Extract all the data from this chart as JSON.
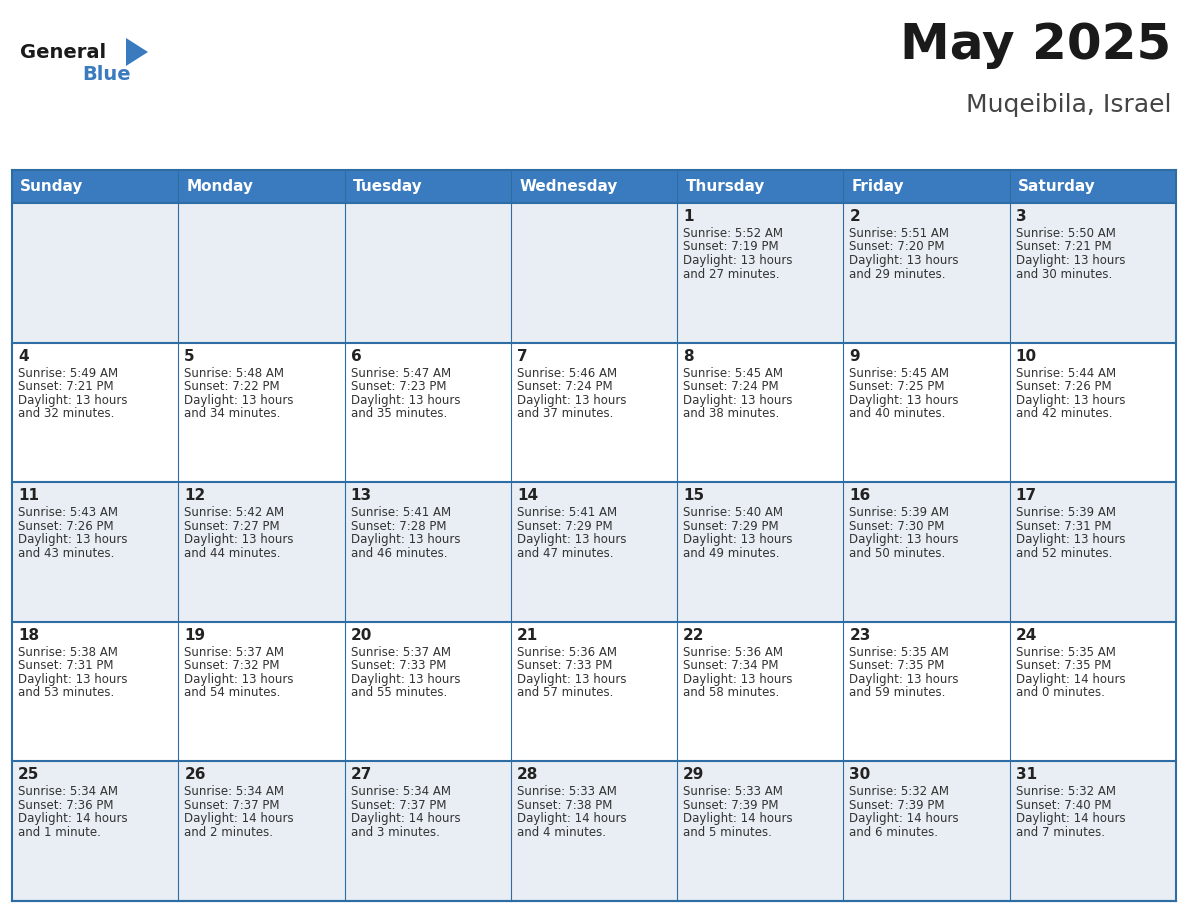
{
  "title": "May 2025",
  "subtitle": "Muqeibila, Israel",
  "header_bg": "#3a7bbf",
  "header_text": "#ffffff",
  "cell_bg_odd": "#e8eef4",
  "cell_bg_even": "#ffffff",
  "border_color": "#2e6da4",
  "text_color": "#333333",
  "day_number_color": "#222222",
  "days_of_week": [
    "Sunday",
    "Monday",
    "Tuesday",
    "Wednesday",
    "Thursday",
    "Friday",
    "Saturday"
  ],
  "weeks": [
    [
      {
        "day": "",
        "sunrise": "",
        "sunset": "",
        "daylight": ""
      },
      {
        "day": "",
        "sunrise": "",
        "sunset": "",
        "daylight": ""
      },
      {
        "day": "",
        "sunrise": "",
        "sunset": "",
        "daylight": ""
      },
      {
        "day": "",
        "sunrise": "",
        "sunset": "",
        "daylight": ""
      },
      {
        "day": "1",
        "sunrise": "5:52 AM",
        "sunset": "7:19 PM",
        "daylight": "13 hours and 27 minutes."
      },
      {
        "day": "2",
        "sunrise": "5:51 AM",
        "sunset": "7:20 PM",
        "daylight": "13 hours and 29 minutes."
      },
      {
        "day": "3",
        "sunrise": "5:50 AM",
        "sunset": "7:21 PM",
        "daylight": "13 hours and 30 minutes."
      }
    ],
    [
      {
        "day": "4",
        "sunrise": "5:49 AM",
        "sunset": "7:21 PM",
        "daylight": "13 hours and 32 minutes."
      },
      {
        "day": "5",
        "sunrise": "5:48 AM",
        "sunset": "7:22 PM",
        "daylight": "13 hours and 34 minutes."
      },
      {
        "day": "6",
        "sunrise": "5:47 AM",
        "sunset": "7:23 PM",
        "daylight": "13 hours and 35 minutes."
      },
      {
        "day": "7",
        "sunrise": "5:46 AM",
        "sunset": "7:24 PM",
        "daylight": "13 hours and 37 minutes."
      },
      {
        "day": "8",
        "sunrise": "5:45 AM",
        "sunset": "7:24 PM",
        "daylight": "13 hours and 38 minutes."
      },
      {
        "day": "9",
        "sunrise": "5:45 AM",
        "sunset": "7:25 PM",
        "daylight": "13 hours and 40 minutes."
      },
      {
        "day": "10",
        "sunrise": "5:44 AM",
        "sunset": "7:26 PM",
        "daylight": "13 hours and 42 minutes."
      }
    ],
    [
      {
        "day": "11",
        "sunrise": "5:43 AM",
        "sunset": "7:26 PM",
        "daylight": "13 hours and 43 minutes."
      },
      {
        "day": "12",
        "sunrise": "5:42 AM",
        "sunset": "7:27 PM",
        "daylight": "13 hours and 44 minutes."
      },
      {
        "day": "13",
        "sunrise": "5:41 AM",
        "sunset": "7:28 PM",
        "daylight": "13 hours and 46 minutes."
      },
      {
        "day": "14",
        "sunrise": "5:41 AM",
        "sunset": "7:29 PM",
        "daylight": "13 hours and 47 minutes."
      },
      {
        "day": "15",
        "sunrise": "5:40 AM",
        "sunset": "7:29 PM",
        "daylight": "13 hours and 49 minutes."
      },
      {
        "day": "16",
        "sunrise": "5:39 AM",
        "sunset": "7:30 PM",
        "daylight": "13 hours and 50 minutes."
      },
      {
        "day": "17",
        "sunrise": "5:39 AM",
        "sunset": "7:31 PM",
        "daylight": "13 hours and 52 minutes."
      }
    ],
    [
      {
        "day": "18",
        "sunrise": "5:38 AM",
        "sunset": "7:31 PM",
        "daylight": "13 hours and 53 minutes."
      },
      {
        "day": "19",
        "sunrise": "5:37 AM",
        "sunset": "7:32 PM",
        "daylight": "13 hours and 54 minutes."
      },
      {
        "day": "20",
        "sunrise": "5:37 AM",
        "sunset": "7:33 PM",
        "daylight": "13 hours and 55 minutes."
      },
      {
        "day": "21",
        "sunrise": "5:36 AM",
        "sunset": "7:33 PM",
        "daylight": "13 hours and 57 minutes."
      },
      {
        "day": "22",
        "sunrise": "5:36 AM",
        "sunset": "7:34 PM",
        "daylight": "13 hours and 58 minutes."
      },
      {
        "day": "23",
        "sunrise": "5:35 AM",
        "sunset": "7:35 PM",
        "daylight": "13 hours and 59 minutes."
      },
      {
        "day": "24",
        "sunrise": "5:35 AM",
        "sunset": "7:35 PM",
        "daylight": "14 hours and 0 minutes."
      }
    ],
    [
      {
        "day": "25",
        "sunrise": "5:34 AM",
        "sunset": "7:36 PM",
        "daylight": "14 hours and 1 minute."
      },
      {
        "day": "26",
        "sunrise": "5:34 AM",
        "sunset": "7:37 PM",
        "daylight": "14 hours and 2 minutes."
      },
      {
        "day": "27",
        "sunrise": "5:34 AM",
        "sunset": "7:37 PM",
        "daylight": "14 hours and 3 minutes."
      },
      {
        "day": "28",
        "sunrise": "5:33 AM",
        "sunset": "7:38 PM",
        "daylight": "14 hours and 4 minutes."
      },
      {
        "day": "29",
        "sunrise": "5:33 AM",
        "sunset": "7:39 PM",
        "daylight": "14 hours and 5 minutes."
      },
      {
        "day": "30",
        "sunrise": "5:32 AM",
        "sunset": "7:39 PM",
        "daylight": "14 hours and 6 minutes."
      },
      {
        "day": "31",
        "sunrise": "5:32 AM",
        "sunset": "7:40 PM",
        "daylight": "14 hours and 7 minutes."
      }
    ]
  ],
  "figsize": [
    11.88,
    9.18
  ],
  "dpi": 100,
  "logo_general_color": "#1a1a1a",
  "logo_blue_color": "#3a7bbf",
  "title_fontsize": 36,
  "subtitle_fontsize": 18,
  "header_fontsize": 11,
  "day_num_fontsize": 11,
  "cell_text_fontsize": 8.5
}
